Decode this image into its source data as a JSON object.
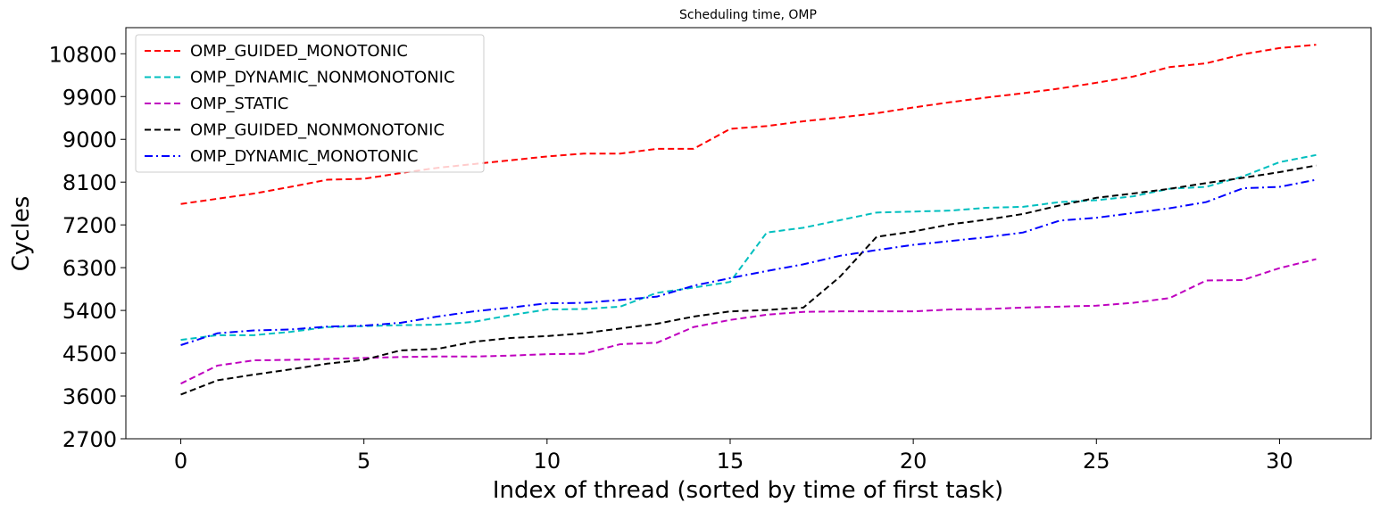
{
  "chart_data": {
    "type": "line",
    "title": "Scheduling time, OMP",
    "xlabel": "Index of thread (sorted by time of first task)",
    "ylabel": "Cycles",
    "xlim": [
      -1.5,
      32.5
    ],
    "ylim": [
      2700,
      11350
    ],
    "xticks": [
      0,
      5,
      10,
      15,
      20,
      25,
      30
    ],
    "yticks": [
      2700,
      3600,
      4500,
      5400,
      6300,
      7200,
      8100,
      9000,
      9900,
      10800
    ],
    "grid": false,
    "legend_position": "top-left",
    "x": [
      0,
      1,
      2,
      3,
      4,
      5,
      6,
      7,
      8,
      9,
      10,
      11,
      12,
      13,
      14,
      15,
      16,
      17,
      18,
      19,
      20,
      21,
      22,
      23,
      24,
      25,
      26,
      27,
      28,
      29,
      30,
      31
    ],
    "series": [
      {
        "name": "OMP_GUIDED_MONOTONIC",
        "color": "#ff0000",
        "dash": "dashed",
        "values": [
          7640,
          7750,
          7860,
          8000,
          8150,
          8170,
          8290,
          8400,
          8480,
          8560,
          8640,
          8700,
          8700,
          8800,
          8800,
          9220,
          9280,
          9380,
          9460,
          9550,
          9670,
          9780,
          9880,
          9970,
          10070,
          10190,
          10320,
          10520,
          10600,
          10790,
          10920,
          10990
        ]
      },
      {
        "name": "OMP_DYNAMIC_NONMONOTONIC",
        "color": "#00bfbf",
        "dash": "dashed",
        "values": [
          4780,
          4880,
          4880,
          4950,
          5050,
          5070,
          5090,
          5100,
          5160,
          5300,
          5420,
          5430,
          5480,
          5770,
          5880,
          6000,
          7040,
          7140,
          7300,
          7460,
          7480,
          7500,
          7560,
          7580,
          7680,
          7720,
          7800,
          7960,
          8000,
          8220,
          8520,
          8670
        ]
      },
      {
        "name": "OMP_STATIC",
        "color": "#bf00bf",
        "dash": "dashed",
        "values": [
          3860,
          4240,
          4350,
          4360,
          4380,
          4400,
          4420,
          4430,
          4430,
          4450,
          4480,
          4490,
          4690,
          4720,
          5050,
          5200,
          5310,
          5370,
          5380,
          5380,
          5380,
          5420,
          5430,
          5460,
          5480,
          5500,
          5560,
          5660,
          6030,
          6040,
          6290,
          6480
        ]
      },
      {
        "name": "OMP_GUIDED_NONMONOTONIC",
        "color": "#000000",
        "dash": "dashed",
        "values": [
          3630,
          3930,
          4050,
          4160,
          4280,
          4360,
          4560,
          4590,
          4740,
          4820,
          4860,
          4920,
          5020,
          5120,
          5270,
          5380,
          5410,
          5460,
          6110,
          6950,
          7060,
          7210,
          7310,
          7430,
          7610,
          7770,
          7860,
          7960,
          8080,
          8190,
          8310,
          8450
        ]
      },
      {
        "name": "OMP_DYNAMIC_MONOTONIC",
        "color": "#0000ff",
        "dash": "dashdot",
        "values": [
          4670,
          4920,
          4980,
          5000,
          5060,
          5080,
          5140,
          5270,
          5380,
          5460,
          5550,
          5560,
          5620,
          5690,
          5920,
          6080,
          6230,
          6370,
          6550,
          6670,
          6780,
          6860,
          6940,
          7040,
          7290,
          7350,
          7450,
          7550,
          7680,
          7970,
          8000,
          8150
        ]
      }
    ]
  }
}
